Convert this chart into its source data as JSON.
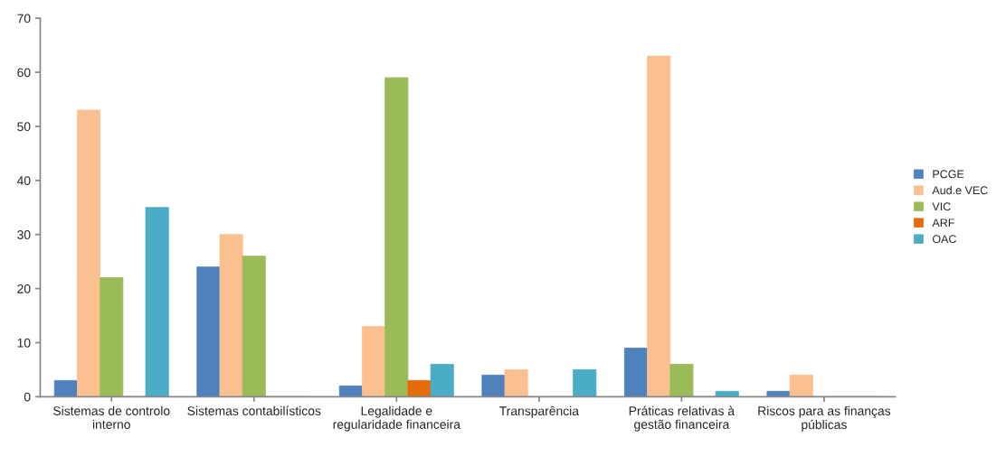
{
  "chart_data": {
    "type": "bar",
    "categories": [
      "Sistemas de controlo\ninterno",
      "Sistemas contabilísticos",
      "Legalidade e\nregularidade financeira",
      "Transparência",
      "Práticas relativas à\ngestão financeira",
      "Riscos para as finanças\npúblicas"
    ],
    "series": [
      {
        "name": "PCGE",
        "color": "#4f81bd",
        "values": [
          3,
          24,
          2,
          4,
          9,
          1
        ]
      },
      {
        "name": "Aud.e VEC",
        "color": "#fac090",
        "values": [
          53,
          30,
          13,
          5,
          63,
          4
        ]
      },
      {
        "name": "VIC",
        "color": "#9bbb59",
        "values": [
          22,
          26,
          59,
          0,
          6,
          0
        ]
      },
      {
        "name": "ARF",
        "color": "#e46c0a",
        "values": [
          0,
          0,
          3,
          0,
          0,
          0
        ]
      },
      {
        "name": "OAC",
        "color": "#4bacc6",
        "values": [
          35,
          0,
          6,
          5,
          1,
          0
        ]
      }
    ],
    "ylim": [
      0,
      70
    ],
    "yticks": [
      0,
      10,
      20,
      30,
      40,
      50,
      60,
      70
    ],
    "grid": false,
    "legend": "right"
  }
}
